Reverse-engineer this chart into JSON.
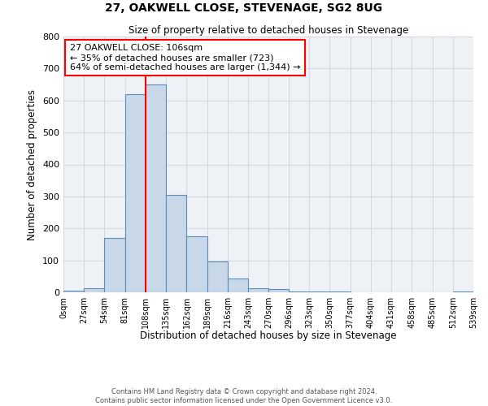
{
  "title": "27, OAKWELL CLOSE, STEVENAGE, SG2 8UG",
  "subtitle": "Size of property relative to detached houses in Stevenage",
  "xlabel": "Distribution of detached houses by size in Stevenage",
  "ylabel": "Number of detached properties",
  "bin_edges": [
    0,
    27,
    54,
    81,
    108,
    135,
    162,
    189,
    216,
    243,
    270,
    296,
    323,
    350,
    377,
    404,
    431,
    458,
    485,
    512,
    539
  ],
  "bin_counts": [
    5,
    12,
    170,
    620,
    650,
    305,
    175,
    97,
    42,
    12,
    10,
    2,
    2,
    2,
    0,
    0,
    0,
    0,
    0,
    3
  ],
  "bar_facecolor": "#c8d8e8",
  "bar_edgecolor": "#5b8db8",
  "vline_x": 108,
  "vline_color": "red",
  "annotation_line1": "27 OAKWELL CLOSE: 106sqm",
  "annotation_line2": "← 35% of detached houses are smaller (723)",
  "annotation_line3": "64% of semi-detached houses are larger (1,344) →",
  "annotation_box_edgecolor": "red",
  "annotation_box_facecolor": "white",
  "ylim": [
    0,
    800
  ],
  "yticks": [
    0,
    100,
    200,
    300,
    400,
    500,
    600,
    700,
    800
  ],
  "bg_color": "#eef2f7",
  "grid_color": "#c8cdd4",
  "footer_line1": "Contains HM Land Registry data © Crown copyright and database right 2024.",
  "footer_line2": "Contains public sector information licensed under the Open Government Licence v3.0."
}
